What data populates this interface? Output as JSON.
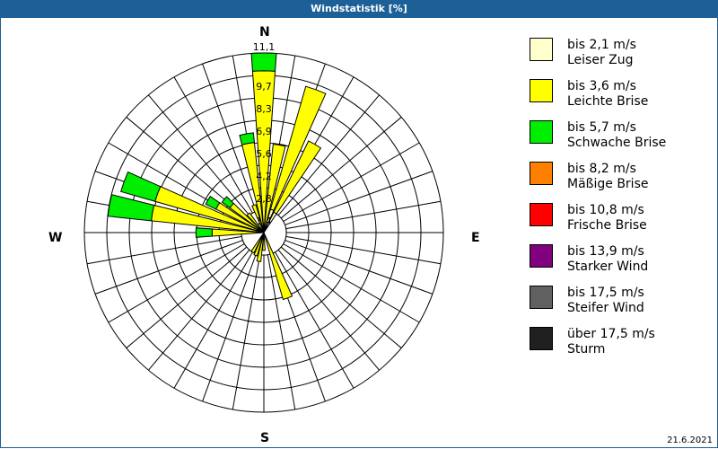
{
  "window": {
    "title": "Windstatistik [%]",
    "date": "21.6.2021"
  },
  "directions": {
    "n": "N",
    "e": "E",
    "s": "S",
    "w": "W"
  },
  "ring_labels": [
    "1,4",
    "2,8",
    "4,2",
    "5,6",
    "6,9",
    "8,3",
    "9,7",
    "11,1"
  ],
  "legend": [
    {
      "range": "bis 2,1 m/s",
      "name": "Leiser Zug",
      "color": "#ffffcc"
    },
    {
      "range": "bis 3,6 m/s",
      "name": "Leichte Brise",
      "color": "#ffff00"
    },
    {
      "range": "bis 5,7 m/s",
      "name": "Schwache Brise",
      "color": "#00ee00"
    },
    {
      "range": "bis 8,2 m/s",
      "name": "Mäßige Brise",
      "color": "#ff8000"
    },
    {
      "range": "bis 10,8 m/s",
      "name": "Frische Brise",
      "color": "#ff0000"
    },
    {
      "range": "bis 13,9 m/s",
      "name": "Starker Wind",
      "color": "#800080"
    },
    {
      "range": "bis 17,5 m/s",
      "name": "Steifer Wind",
      "color": "#606060"
    },
    {
      "range": "über 17,5 m/s",
      "name": "Sturm",
      "color": "#202020"
    }
  ],
  "chart_data": {
    "type": "polar-stacked-bar",
    "title": "Windstatistik [%]",
    "sector_width_deg": 10,
    "radial_max": 11.1,
    "radial_ticks": [
      1.4,
      2.8,
      4.2,
      5.6,
      6.9,
      8.3,
      9.7,
      11.1
    ],
    "series_names": [
      "bis 2,1 m/s",
      "bis 3,6 m/s",
      "bis 5,7 m/s"
    ],
    "sectors": [
      {
        "dir": 0,
        "values": [
          0.1,
          9.9,
          1.1
        ]
      },
      {
        "dir": 10,
        "values": [
          0.2,
          5.3,
          0
        ]
      },
      {
        "dir": 20,
        "values": [
          1.5,
          7.9,
          0
        ]
      },
      {
        "dir": 30,
        "values": [
          1.4,
          4.9,
          0
        ]
      },
      {
        "dir": 180,
        "values": [
          0,
          1.1,
          0
        ]
      },
      {
        "dir": 190,
        "values": [
          0,
          1.8,
          0
        ]
      },
      {
        "dir": 200,
        "values": [
          0,
          1.5,
          0
        ]
      },
      {
        "dir": 160,
        "values": [
          0,
          4.3,
          0
        ]
      },
      {
        "dir": 210,
        "values": [
          0,
          1.4,
          0
        ]
      },
      {
        "dir": 270,
        "values": [
          0,
          3.2,
          1.0
        ]
      },
      {
        "dir": 280,
        "values": [
          0,
          7.0,
          2.7
        ]
      },
      {
        "dir": 290,
        "values": [
          0,
          7.0,
          2.2
        ]
      },
      {
        "dir": 300,
        "values": [
          0,
          3.3,
          0.7
        ]
      },
      {
        "dir": 310,
        "values": [
          0,
          2.6,
          0.6
        ]
      },
      {
        "dir": 320,
        "values": [
          0,
          1.5,
          0
        ]
      },
      {
        "dir": 340,
        "values": [
          0,
          1.8,
          0
        ]
      },
      {
        "dir": 350,
        "values": [
          0,
          5.6,
          0.6
        ]
      }
    ]
  }
}
